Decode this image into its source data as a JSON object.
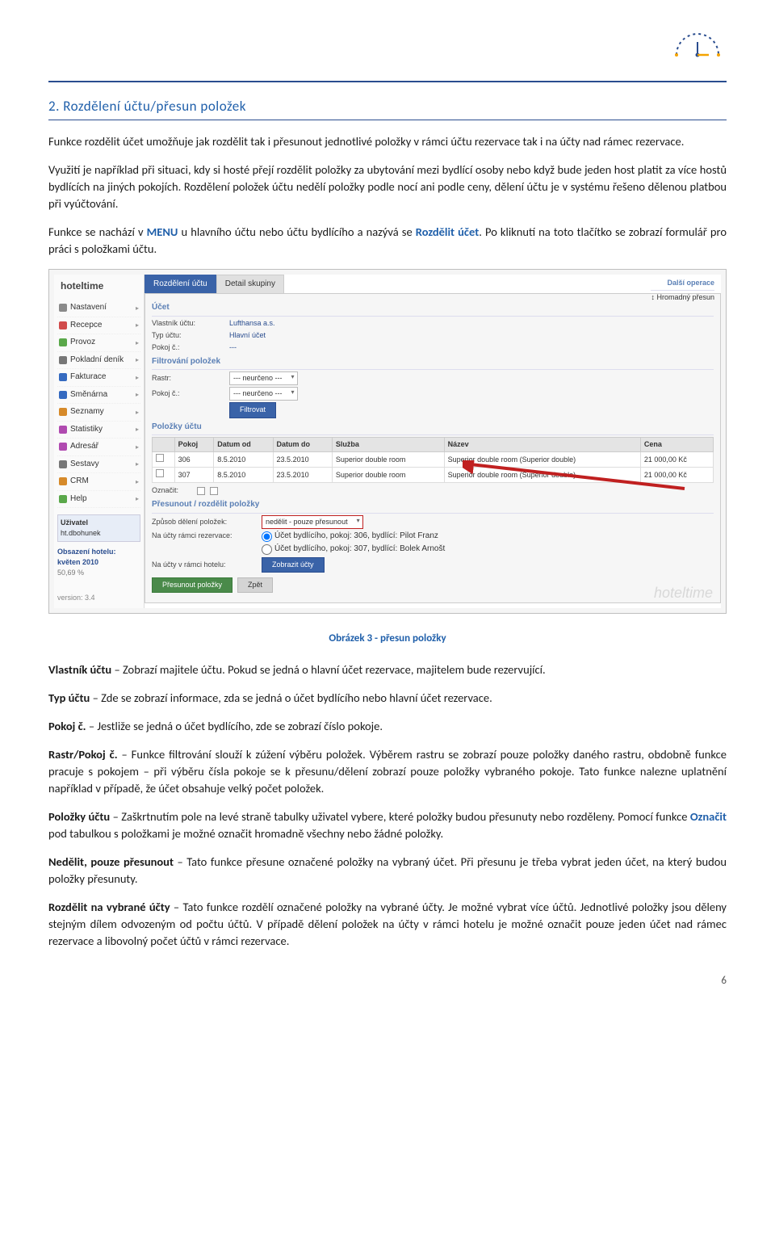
{
  "section_number": "2.",
  "section_title": "Rozdělení účtu/přesun položek",
  "para1": "Funkce rozdělit účet umožňuje jak rozdělit tak i přesunout jednotlivé položky v rámci účtu rezervace tak i na účty nad rámec rezervace.",
  "para2": "Využití je například při situaci, kdy si hosté přejí rozdělit položky za ubytování mezi bydlící osoby nebo když bude jeden host platit za více hostů bydlících na jiných pokojích. Rozdělení položek účtu nedělí položky podle nocí ani podle ceny, dělení účtu je v systému řešeno dělenou platbou při vyúčtování.",
  "para3_a": "Funkce se nachází v ",
  "para3_menu": "MENU",
  "para3_b": " u hlavního účtu nebo účtu bydlícího a nazývá se ",
  "para3_roz": "Rozdělit účet",
  "para3_c": ". Po kliknutí na toto tlačítko se zobrazí formulář pro práci s položkami účtu.",
  "figcaption": "Obrázek 3 - přesun položky",
  "d_vlastnik_h": "Vlastník účtu",
  "d_vlastnik_t": " – Zobrazí majitele účtu. Pokud se jedná o hlavní účet rezervace, majitelem bude rezervující.",
  "d_typ_h": "Typ účtu",
  "d_typ_t": " – Zde se zobrazí informace, zda se jedná o účet bydlícího nebo hlavní účet rezervace.",
  "d_pokoj_h": "Pokoj č.",
  "d_pokoj_t": " – Jestliže se jedná o účet bydlícího, zde se zobrazí číslo pokoje.",
  "d_rastr_h": "Rastr/Pokoj č.",
  "d_rastr_t": " –  Funkce filtrování slouží k zúžení výběru položek. Výběrem rastru se zobrazí pouze položky daného rastru, obdobně funkce pracuje s pokojem – při výběru čísla pokoje se k přesunu/dělení zobrazí pouze položky vybraného pokoje. Tato funkce nalezne uplatnění například v případě, že účet obsahuje velký počet položek.",
  "d_polozky_h": "Položky účtu",
  "d_polozky_t1": " – Zaškrtnutím pole na levé straně tabulky uživatel vybere, které položky budou přesunuty nebo rozděleny. Pomocí funkce ",
  "d_polozky_oz": "Označit",
  "d_polozky_t2": " pod tabulkou s položkami je možné označit hromadně všechny nebo žádné položky.",
  "d_nedel_h": "Nedělit, pouze přesunout",
  "d_nedel_t": " – Tato funkce přesune označené položky na vybraný účet. Při přesunu je třeba vybrat jeden účet, na který budou položky přesunuty.",
  "d_rozvyb_h": "Rozdělit na vybrané účty",
  "d_rozvyb_t": " – Tato funkce rozdělí označené položky na vybrané účty. Je možné vybrat více účtů. Jednotlivé položky jsou děleny stejným dílem odvozeným od počtu účtů. V případě dělení položek na účty v rámci hotelu je možné označit pouze jeden účet nad rámec rezervace a libovolný počet účtů v rámci rezervace.",
  "page_number": "6",
  "ui": {
    "brand": "hoteltime",
    "menu": [
      {
        "label": "Nastavení",
        "color": "#8a8a8a"
      },
      {
        "label": "Recepce",
        "color": "#d14b4b"
      },
      {
        "label": "Provoz",
        "color": "#5aa84a"
      },
      {
        "label": "Pokladní deník",
        "color": "#777"
      },
      {
        "label": "Fakturace",
        "color": "#356ac0"
      },
      {
        "label": "Směnárna",
        "color": "#356ac0"
      },
      {
        "label": "Seznamy",
        "color": "#d68a2a"
      },
      {
        "label": "Statistiky",
        "color": "#b04ab0"
      },
      {
        "label": "Adresář",
        "color": "#b04ab0"
      },
      {
        "label": "Sestavy",
        "color": "#777"
      },
      {
        "label": "CRM",
        "color": "#d68a2a"
      },
      {
        "label": "Help",
        "color": "#5aa84a"
      }
    ],
    "user_label": "Uživatel",
    "user_val": "ht.dbohunek",
    "occ_label": "Obsazení hotelu:",
    "occ_period": "květen 2010",
    "occ_val": "50,69 %",
    "version": "version: 3.4",
    "tab_active": "Rozdělení účtu",
    "tab_other": "Detail skupiny",
    "ops_head": "Další operace",
    "ops_item": "Hromadný přesun",
    "ucet_head": "Účet",
    "vlastnik_l": "Vlastník účtu:",
    "vlastnik_v": "Lufthansa a.s.",
    "typ_l": "Typ účtu:",
    "typ_v": "Hlavní účet",
    "pokoj_l": "Pokoj č.:",
    "pokoj_v": "---",
    "filtr_head": "Filtrování položek",
    "rastr_l": "Rastr:",
    "rastr_v": "--- neurčeno ---",
    "pc_l": "Pokoj č.:",
    "pc_v": "--- neurčeno ---",
    "filtrovat": "Filtrovat",
    "pol_head": "Položky účtu",
    "th": [
      "",
      "Pokoj",
      "Datum od",
      "Datum do",
      "Služba",
      "Název",
      "Cena"
    ],
    "rows": [
      [
        "306",
        "8.5.2010",
        "23.5.2010",
        "Superior double room",
        "Superior double room (Superior double)",
        "21 000,00 Kč"
      ],
      [
        "307",
        "8.5.2010",
        "23.5.2010",
        "Superior double room",
        "Superior double room (Superior double)",
        "21 000,00 Kč"
      ]
    ],
    "oznacit_l": "Označit:",
    "pres_head": "Přesunout / rozdělit položky",
    "zpusob_l": "Způsob dělení položek:",
    "zpusob_v": "nedělit - pouze přesunout",
    "na_ucty_l": "Na účty rámci rezervace:",
    "na_ucty_1": "Účet bydlícího, pokoj: 306, bydlící: Pilot Franz",
    "na_ucty_2": "Účet bydlícího, pokoj: 307, bydlící: Bolek Arnošt",
    "na_ucty_hotel_l": "Na účty v rámci hotelu:",
    "zobrazit_btn": "Zobrazit účty",
    "presunout_btn": "Přesunout položky",
    "zpet_btn": "Zpět",
    "watermark": "hoteltime"
  }
}
